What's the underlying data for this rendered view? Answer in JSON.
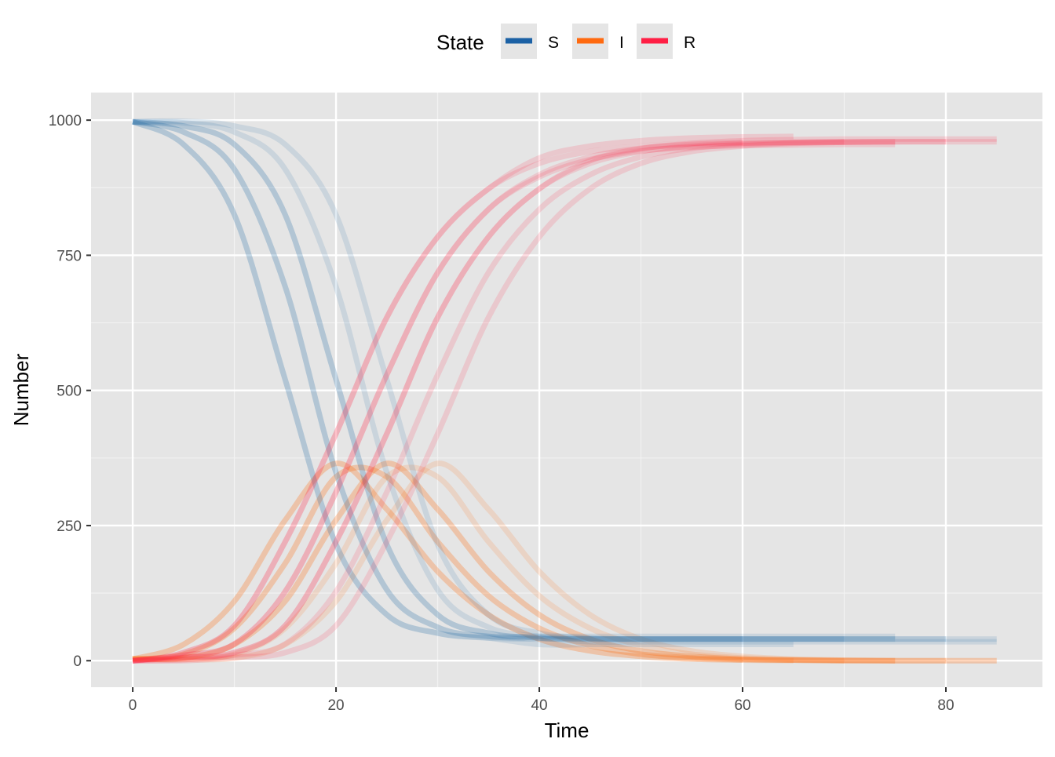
{
  "chart_data": {
    "type": "line",
    "xlabel": "Time",
    "ylabel": "Number",
    "xlim": [
      -4.1,
      89.5
    ],
    "ylim": [
      -49,
      1051
    ],
    "x_ticks": [
      0,
      20,
      40,
      60,
      80
    ],
    "y_ticks": [
      0,
      250,
      500,
      750,
      1000
    ],
    "grid": true,
    "legend": {
      "title": "State",
      "placement": "top",
      "entries": [
        {
          "key": "S",
          "label": "S",
          "color": "#1B61A5"
        },
        {
          "key": "I",
          "label": "I",
          "color": "#FF6A10"
        },
        {
          "key": "R",
          "label": "R",
          "color": "#FF1F45"
        }
      ]
    },
    "runs": [
      {
        "t0": 0,
        "step": 5,
        "S": [
          997,
          955,
          825,
          520,
          215,
          85,
          51,
          42,
          40,
          40,
          40,
          40,
          40
        ],
        "I": [
          3,
          30,
          110,
          260,
          365,
          280,
          165,
          85,
          40,
          18,
          8,
          3,
          1
        ],
        "R": [
          0,
          15,
          65,
          220,
          420,
          635,
          784,
          873,
          920,
          942,
          952,
          957,
          959
        ]
      },
      {
        "t0": 0,
        "step": 5,
        "S": [
          997,
          955,
          825,
          520,
          215,
          85,
          51,
          42,
          30,
          30,
          30,
          30,
          30,
          30
        ],
        "I": [
          3,
          30,
          110,
          260,
          365,
          280,
          165,
          85,
          40,
          18,
          8,
          3,
          1,
          0
        ],
        "R": [
          0,
          15,
          65,
          220,
          420,
          635,
          784,
          873,
          930,
          952,
          962,
          967,
          969,
          970
        ]
      },
      {
        "t0": 0,
        "step": 5,
        "S": [
          997,
          978,
          909,
          692,
          348,
          131,
          62,
          45,
          41,
          40,
          40,
          40,
          40,
          40,
          40
        ],
        "I": [
          3,
          12,
          60,
          180,
          340,
          340,
          220,
          120,
          60,
          28,
          12,
          5,
          2,
          1,
          0
        ],
        "R": [
          0,
          10,
          31,
          128,
          312,
          529,
          718,
          835,
          899,
          932,
          948,
          955,
          958,
          959,
          960
        ]
      },
      {
        "t0": 0,
        "step": 5,
        "S": [
          997,
          978,
          909,
          692,
          348,
          131,
          62,
          45,
          45,
          45,
          45,
          45,
          45,
          45,
          45,
          45
        ],
        "I": [
          3,
          12,
          60,
          180,
          340,
          340,
          220,
          120,
          60,
          28,
          12,
          5,
          2,
          1,
          0,
          0
        ],
        "R": [
          0,
          10,
          31,
          128,
          312,
          529,
          718,
          835,
          895,
          927,
          943,
          950,
          953,
          954,
          955,
          955
        ]
      },
      {
        "t0": 0,
        "step": 5,
        "S": [
          997,
          989,
          955,
          825,
          520,
          215,
          85,
          51,
          42,
          40,
          40,
          40,
          40,
          40,
          40,
          40,
          40
        ],
        "I": [
          3,
          5,
          30,
          110,
          260,
          365,
          280,
          165,
          85,
          40,
          18,
          8,
          3,
          1,
          0,
          0,
          0
        ],
        "R": [
          0,
          6,
          15,
          65,
          220,
          420,
          635,
          784,
          873,
          920,
          942,
          952,
          957,
          959,
          960,
          960,
          960
        ]
      },
      {
        "t0": 0,
        "step": 5,
        "S": [
          997,
          989,
          955,
          825,
          520,
          215,
          85,
          51,
          42,
          35,
          35,
          35,
          35,
          35,
          35,
          35,
          35,
          35
        ],
        "I": [
          3,
          5,
          30,
          110,
          260,
          365,
          280,
          165,
          85,
          40,
          18,
          8,
          3,
          1,
          0,
          0,
          0,
          0
        ],
        "R": [
          0,
          6,
          15,
          65,
          220,
          420,
          635,
          784,
          873,
          925,
          947,
          957,
          962,
          964,
          965,
          965,
          965,
          965
        ]
      },
      {
        "t0": 0,
        "step": 5,
        "S": [
          997,
          995,
          978,
          909,
          692,
          348,
          131,
          62,
          45,
          41,
          40,
          40,
          40,
          40,
          40,
          40
        ],
        "I": [
          3,
          3,
          12,
          60,
          180,
          340,
          340,
          220,
          120,
          60,
          28,
          12,
          5,
          2,
          1,
          0
        ],
        "R": [
          0,
          2,
          10,
          31,
          128,
          312,
          529,
          718,
          835,
          899,
          932,
          948,
          955,
          958,
          959,
          960
        ]
      },
      {
        "t0": 0,
        "step": 5,
        "S": [
          997,
          998,
          989,
          955,
          825,
          520,
          215,
          85,
          51,
          42,
          40,
          40,
          40,
          40,
          40,
          40,
          40,
          40
        ],
        "I": [
          3,
          2,
          5,
          30,
          110,
          260,
          365,
          280,
          165,
          85,
          40,
          18,
          8,
          3,
          1,
          0,
          0,
          0
        ],
        "R": [
          0,
          0,
          6,
          15,
          65,
          220,
          420,
          635,
          784,
          873,
          920,
          942,
          952,
          957,
          959,
          960,
          960,
          960
        ]
      }
    ]
  }
}
